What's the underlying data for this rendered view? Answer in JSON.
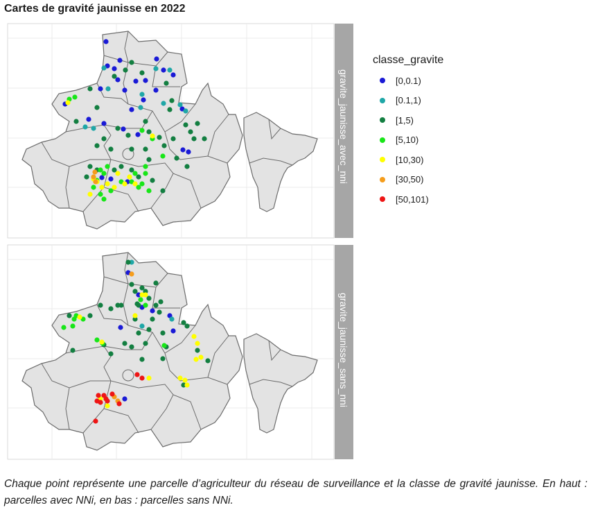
{
  "title": "Cartes de gravité jaunisse en 2022",
  "caption": "Chaque point représente une parcelle d’agriculteur du réseau de surveillance et la classe de gravité jaunisse. En haut : parcelles avec NNi, en bas : parcelles sans NNi.",
  "chart_data": {
    "type": "scatter",
    "legend": {
      "title": "classe_gravite",
      "placement": "right",
      "classes": [
        {
          "label": "[0,0.1)",
          "color": "#1a1ad6"
        },
        {
          "label": "[0.1,1)",
          "color": "#1fa7a7"
        },
        {
          "label": "[1,5)",
          "color": "#137f41"
        },
        {
          "label": "[5,10)",
          "color": "#18e618"
        },
        {
          "label": "[10,30)",
          "color": "#ffff00"
        },
        {
          "label": "[30,50)",
          "color": "#f59d1c"
        },
        {
          "label": "[50,101)",
          "color": "#ee1515"
        }
      ]
    },
    "grid": true,
    "facets": [
      {
        "label": "gravite_jaunisse_avec_nni",
        "points": [
          [
            153,
            60,
            0
          ],
          [
            173,
            87,
            0
          ],
          [
            226,
            85,
            0
          ],
          [
            236,
            101,
            0
          ],
          [
            155,
            95,
            0
          ],
          [
            165,
            99,
            0
          ],
          [
            170,
            115,
            0
          ],
          [
            196,
            117,
            0
          ],
          [
            210,
            116,
            0
          ],
          [
            180,
            130,
            0
          ],
          [
            145,
            128,
            0
          ],
          [
            190,
            158,
            0
          ],
          [
            207,
            144,
            0
          ],
          [
            225,
            130,
            0
          ],
          [
            250,
            108,
            0
          ],
          [
            263,
            157,
            0
          ],
          [
            94,
            150,
            0
          ],
          [
            150,
            178,
            0
          ],
          [
            128,
            172,
            0
          ],
          [
            178,
            186,
            0
          ],
          [
            264,
            216,
            0
          ],
          [
            199,
            194,
            0
          ],
          [
            147,
            256,
            0
          ],
          [
            160,
            258,
            0
          ],
          [
            184,
            262,
            0
          ],
          [
            272,
            219,
            0
          ],
          [
            156,
            128,
            1
          ],
          [
            205,
            136,
            1
          ],
          [
            225,
            99,
            1
          ],
          [
            245,
            101,
            1
          ],
          [
            236,
            149,
            1
          ],
          [
            260,
            151,
            1
          ],
          [
            135,
            185,
            1
          ],
          [
            123,
            183,
            1
          ],
          [
            268,
            160,
            1
          ],
          [
            150,
            98,
            1
          ],
          [
            203,
            155,
            1
          ],
          [
            190,
            90,
            2
          ],
          [
            205,
            105,
            2
          ],
          [
            130,
            128,
            2
          ],
          [
            165,
            110,
            2
          ],
          [
            240,
            120,
            2
          ],
          [
            248,
            145,
            2
          ],
          [
            245,
            158,
            2
          ],
          [
            268,
            180,
            2
          ],
          [
            285,
            178,
            2
          ],
          [
            280,
            200,
            2
          ],
          [
            295,
            200,
            2
          ],
          [
            275,
            190,
            2
          ],
          [
            250,
            200,
            2
          ],
          [
            237,
            210,
            2
          ],
          [
            255,
            228,
            2
          ],
          [
            270,
            240,
            2
          ],
          [
            150,
            200,
            2
          ],
          [
            140,
            210,
            2
          ],
          [
            160,
            215,
            2
          ],
          [
            190,
            215,
            2
          ],
          [
            210,
            215,
            2
          ],
          [
            215,
            230,
            2
          ],
          [
            175,
            240,
            2
          ],
          [
            190,
            245,
            2
          ],
          [
            200,
            255,
            2
          ],
          [
            165,
            245,
            2
          ],
          [
            125,
            255,
            2
          ],
          [
            140,
            245,
            2
          ],
          [
            220,
            260,
            2
          ],
          [
            235,
            275,
            2
          ],
          [
            130,
            240,
            2
          ],
          [
            185,
            195,
            2
          ],
          [
            215,
            190,
            2
          ],
          [
            170,
            185,
            2
          ],
          [
            230,
            198,
            2
          ],
          [
            110,
            175,
            2
          ],
          [
            140,
            155,
            2
          ],
          [
            210,
            175,
            2
          ],
          [
            181,
            101,
            2
          ],
          [
            100,
            143,
            3
          ],
          [
            108,
            140,
            3
          ],
          [
            145,
            245,
            3
          ],
          [
            150,
            250,
            3
          ],
          [
            140,
            260,
            3
          ],
          [
            135,
            270,
            3
          ],
          [
            145,
            280,
            3
          ],
          [
            160,
            275,
            3
          ],
          [
            175,
            262,
            3
          ],
          [
            195,
            250,
            3
          ],
          [
            210,
            250,
            3
          ],
          [
            205,
            265,
            3
          ],
          [
            200,
            270,
            3
          ],
          [
            190,
            262,
            3
          ],
          [
            210,
            240,
            3
          ],
          [
            235,
            225,
            3
          ],
          [
            220,
            200,
            3
          ],
          [
            215,
            275,
            3
          ],
          [
            150,
            287,
            3
          ],
          [
            205,
            188,
            3
          ],
          [
            155,
            240,
            3
          ],
          [
            98,
            148,
            4
          ],
          [
            135,
            258,
            4
          ],
          [
            155,
            265,
            4
          ],
          [
            180,
            265,
            4
          ],
          [
            195,
            265,
            4
          ],
          [
            165,
            270,
            4
          ],
          [
            130,
            280,
            4
          ],
          [
            147,
            270,
            4
          ],
          [
            220,
            196,
            4
          ],
          [
            187,
            255,
            4
          ],
          [
            170,
            250,
            4
          ],
          [
            140,
            262,
            4
          ],
          [
            137,
            248,
            5
          ],
          [
            135,
            255,
            5
          ],
          [
            138,
            262,
            5
          ]
        ]
      },
      {
        "label": "gravite_jaunisse_sans_nni",
        "points": [
          [
            200,
            425,
            0
          ],
          [
            205,
            443,
            0
          ],
          [
            220,
            448,
            0
          ],
          [
            245,
            455,
            0
          ],
          [
            250,
            477,
            0
          ],
          [
            174,
            472,
            0
          ],
          [
            180,
            575,
            0
          ],
          [
            185,
            393,
            0
          ],
          [
            190,
            378,
            1
          ],
          [
            205,
            470,
            1
          ],
          [
            248,
            460,
            1
          ],
          [
            190,
            410,
            2
          ],
          [
            195,
            420,
            2
          ],
          [
            205,
            415,
            2
          ],
          [
            210,
            420,
            2
          ],
          [
            215,
            430,
            2
          ],
          [
            200,
            440,
            2
          ],
          [
            225,
            440,
            2
          ],
          [
            230,
            450,
            2
          ],
          [
            220,
            460,
            2
          ],
          [
            215,
            475,
            2
          ],
          [
            200,
            480,
            2
          ],
          [
            210,
            495,
            2
          ],
          [
            190,
            500,
            2
          ],
          [
            180,
            495,
            2
          ],
          [
            195,
            460,
            2
          ],
          [
            175,
            440,
            2
          ],
          [
            170,
            440,
            2
          ],
          [
            145,
            440,
            2
          ],
          [
            160,
            445,
            2
          ],
          [
            235,
            480,
            2
          ],
          [
            240,
            500,
            2
          ],
          [
            235,
            517,
            2
          ],
          [
            205,
            518,
            2
          ],
          [
            265,
            465,
            2
          ],
          [
            270,
            470,
            2
          ],
          [
            285,
            505,
            2
          ],
          [
            300,
            520,
            2
          ],
          [
            265,
            555,
            2
          ],
          [
            160,
            510,
            2
          ],
          [
            105,
            505,
            2
          ],
          [
            150,
            497,
            2
          ],
          [
            100,
            455,
            2
          ],
          [
            130,
            455,
            2
          ],
          [
            225,
            408,
            2
          ],
          [
            185,
            378,
            2
          ],
          [
            232,
            435,
            2
          ],
          [
            198,
            438,
            2
          ],
          [
            92,
            472,
            3
          ],
          [
            105,
            470,
            3
          ],
          [
            120,
            460,
            3
          ],
          [
            110,
            455,
            3
          ],
          [
            140,
            490,
            3
          ],
          [
            210,
            440,
            3
          ],
          [
            203,
            432,
            3
          ],
          [
            148,
            495,
            3
          ],
          [
            237,
            498,
            3
          ],
          [
            107,
            460,
            3
          ],
          [
            115,
            457,
            4
          ],
          [
            195,
            455,
            4
          ],
          [
            205,
            425,
            4
          ],
          [
            210,
            425,
            4
          ],
          [
            280,
            485,
            4
          ],
          [
            285,
            495,
            4
          ],
          [
            290,
            515,
            4
          ],
          [
            283,
            518,
            4
          ],
          [
            260,
            545,
            4
          ],
          [
            270,
            555,
            4
          ],
          [
            155,
            585,
            4
          ],
          [
            145,
            575,
            4
          ],
          [
            215,
            545,
            4
          ],
          [
            153,
            575,
            4
          ],
          [
            147,
            493,
            4
          ],
          [
            267,
            548,
            4
          ],
          [
            190,
            395,
            5
          ],
          [
            165,
            572,
            5
          ],
          [
            170,
            578,
            5
          ],
          [
            150,
            570,
            6
          ],
          [
            145,
            580,
            6
          ],
          [
            155,
            578,
            6
          ],
          [
            162,
            568,
            6
          ],
          [
            172,
            582,
            6
          ],
          [
            140,
            578,
            6
          ],
          [
            198,
            540,
            6
          ],
          [
            205,
            545,
            6
          ],
          [
            142,
            570,
            6
          ],
          [
            138,
            607,
            6
          ],
          [
            153,
            575,
            6
          ]
        ]
      }
    ]
  }
}
